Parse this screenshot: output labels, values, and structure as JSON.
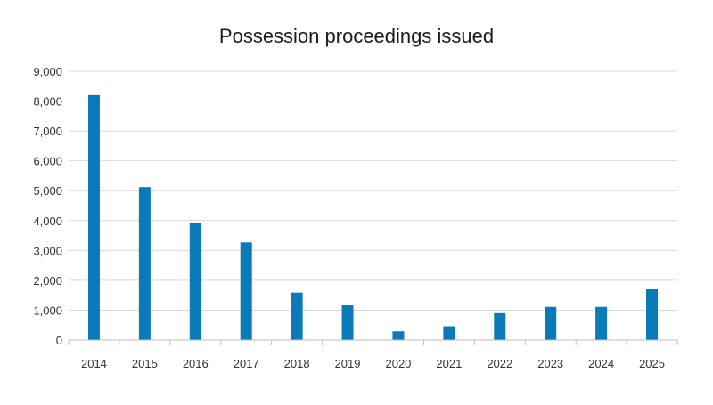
{
  "chart_data": {
    "type": "bar",
    "title": "Possession proceedings issued",
    "xlabel": "",
    "ylabel": "",
    "categories": [
      "2014",
      "2015",
      "2016",
      "2017",
      "2018",
      "2019",
      "2020",
      "2021",
      "2022",
      "2023",
      "2024",
      "2025"
    ],
    "values": [
      8200,
      5120,
      3920,
      3270,
      1590,
      1160,
      290,
      460,
      900,
      1110,
      1110,
      1700
    ],
    "ylim": [
      0,
      9000
    ],
    "yticks": [
      0,
      1000,
      2000,
      3000,
      4000,
      5000,
      6000,
      7000,
      8000,
      9000
    ],
    "ytick_labels": [
      "0",
      "1,000",
      "2,000",
      "3,000",
      "4,000",
      "5,000",
      "6,000",
      "7,000",
      "8,000",
      "9,000"
    ],
    "grid": true,
    "legend": "none",
    "colors": {
      "bar": "#0a7bb8",
      "grid": "#d9d9d9",
      "axis": "#bfbfbf"
    }
  }
}
